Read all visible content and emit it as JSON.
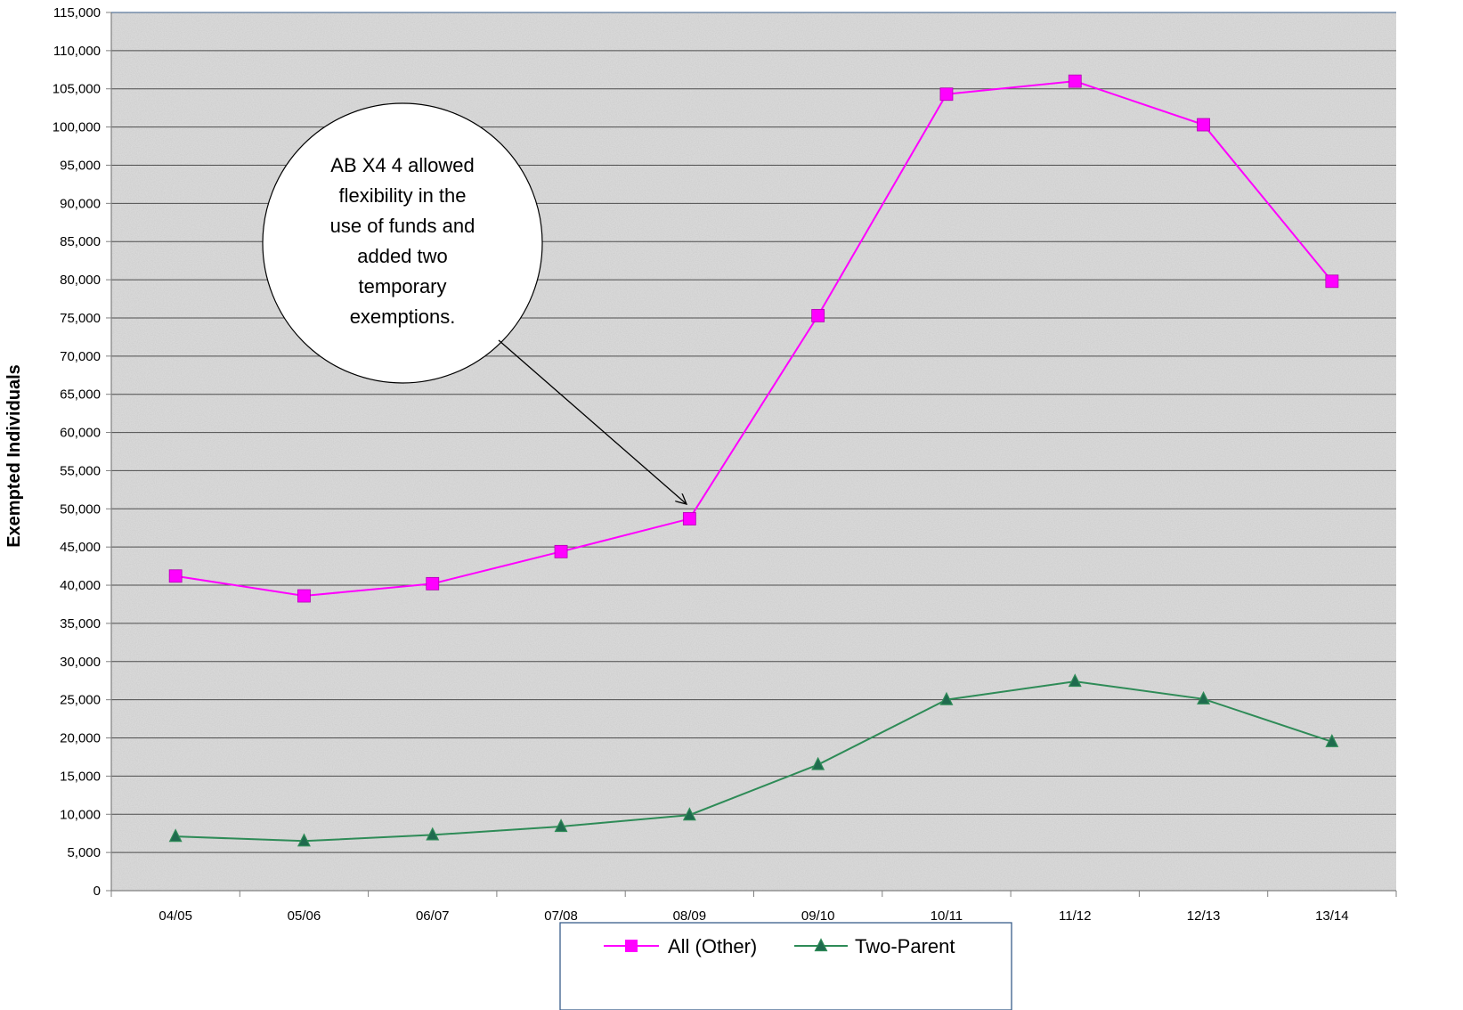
{
  "chart_data": {
    "type": "line",
    "title": "",
    "xlabel": "",
    "ylabel": "Exempted Individuals",
    "categories": [
      "04/05",
      "05/06",
      "06/07",
      "07/08",
      "08/09",
      "09/10",
      "10/11",
      "11/12",
      "12/13",
      "13/14"
    ],
    "ylim": [
      0,
      115000
    ],
    "ytick_step": 5000,
    "grid": true,
    "legend_position": "bottom",
    "series": [
      {
        "name": "All (Other)",
        "color": "#ff00ff",
        "marker": "square",
        "values": [
          41200,
          38600,
          40200,
          44400,
          48700,
          75300,
          104300,
          106000,
          100300,
          79800
        ]
      },
      {
        "name": "Two-Parent",
        "color": "#2e8b57",
        "marker_fill": "#1f6b4e",
        "marker": "triangle",
        "values": [
          7100,
          6500,
          7300,
          8400,
          9900,
          16500,
          25000,
          27400,
          25100,
          19500
        ]
      }
    ],
    "annotation": {
      "text_lines": [
        "AB X4 4 allowed",
        "flexibility in the",
        "use of funds and",
        "added two",
        "temporary",
        "exemptions."
      ],
      "points_to_category": "08/09"
    },
    "colors": {
      "plot_background": "#d9d9d9",
      "gridline": "#4d4d4d",
      "legend_border": "#385d8a"
    }
  }
}
